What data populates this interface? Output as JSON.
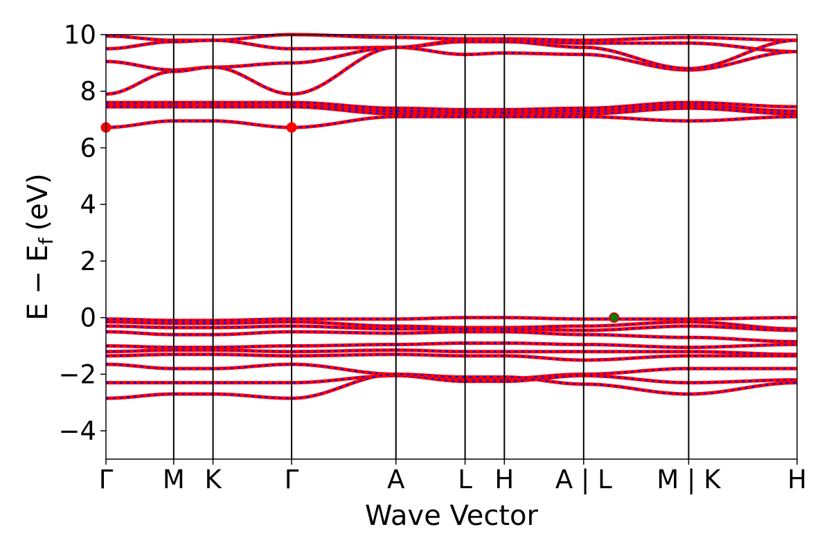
{
  "chart_data": {
    "type": "line",
    "title": "",
    "xlabel": "Wave Vector",
    "ylabel": "E − E",
    "ylabel_sub": "f",
    "ylabel_unit": "(eV)",
    "ylim": [
      -5,
      10
    ],
    "yticks": [
      -4,
      -2,
      0,
      2,
      4,
      6,
      8,
      10
    ],
    "ytick_labels": [
      "−4",
      "−2",
      "0",
      "2",
      "4",
      "6",
      "8",
      "10"
    ],
    "xlim": [
      0,
      10.2
    ],
    "kpoints": [
      {
        "label": "Γ",
        "x": 0
      },
      {
        "label": "M",
        "x": 1.0
      },
      {
        "label": "K",
        "x": 1.58
      },
      {
        "label": "Γ",
        "x": 2.74
      },
      {
        "label": "A",
        "x": 4.28
      },
      {
        "label": "L",
        "x": 5.3
      },
      {
        "label": "H",
        "x": 5.88
      },
      {
        "label": "A | L",
        "x": 7.05
      },
      {
        "label": "M | K",
        "x": 8.6
      },
      {
        "label": "H",
        "x": 10.2
      }
    ],
    "grid": false,
    "colors": {
      "spin_up": "#0000ff",
      "spin_down": "#ff0000",
      "vbm_marker": "#008000",
      "cbm_marker": "#ff0000"
    },
    "segment_bounds": [
      0,
      1.0,
      1.58,
      2.74,
      4.28,
      5.3,
      5.88,
      7.05,
      8.6,
      10.2
    ],
    "bands": [
      {
        "name": "c6",
        "e": [
          9.95,
          9.8,
          9.8,
          10.0,
          9.9,
          9.85,
          9.85,
          9.8,
          9.9,
          9.8
        ]
      },
      {
        "name": "c5",
        "e": [
          9.5,
          9.75,
          9.8,
          9.5,
          9.55,
          9.8,
          9.8,
          9.7,
          9.7,
          9.4
        ]
      },
      {
        "name": "c4",
        "e": [
          9.05,
          8.75,
          8.85,
          9.0,
          9.55,
          9.3,
          9.35,
          9.3,
          8.75,
          9.4
        ]
      },
      {
        "name": "c3",
        "e": [
          7.9,
          8.7,
          8.85,
          7.9,
          9.55,
          9.75,
          9.75,
          9.55,
          8.8,
          9.8
        ]
      },
      {
        "name": "c2a",
        "e": [
          7.6,
          7.6,
          7.6,
          7.6,
          7.4,
          7.35,
          7.35,
          7.4,
          7.6,
          7.45
        ]
      },
      {
        "name": "c2b",
        "e": [
          7.5,
          7.5,
          7.5,
          7.5,
          7.3,
          7.25,
          7.25,
          7.3,
          7.5,
          7.3
        ]
      },
      {
        "name": "c2c",
        "e": [
          7.45,
          7.45,
          7.45,
          7.45,
          7.2,
          7.15,
          7.15,
          7.2,
          7.4,
          7.2
        ]
      },
      {
        "name": "c1",
        "e": [
          6.72,
          6.95,
          6.95,
          6.72,
          7.1,
          7.1,
          7.1,
          7.1,
          6.95,
          7.1
        ]
      },
      {
        "name": "v1",
        "e": [
          -0.05,
          -0.1,
          -0.1,
          -0.05,
          -0.05,
          0.0,
          0.0,
          -0.05,
          -0.05,
          0.0
        ]
      },
      {
        "name": "v2",
        "e": [
          -0.15,
          -0.2,
          -0.2,
          -0.15,
          -0.3,
          -0.35,
          -0.35,
          -0.3,
          -0.15,
          -0.4
        ]
      },
      {
        "name": "v3",
        "e": [
          -0.3,
          -0.35,
          -0.35,
          -0.3,
          -0.4,
          -0.4,
          -0.4,
          -0.45,
          -0.3,
          -0.45
        ]
      },
      {
        "name": "v4",
        "e": [
          -0.5,
          -0.6,
          -0.6,
          -0.5,
          -0.55,
          -0.5,
          -0.5,
          -0.6,
          -0.7,
          -0.85
        ]
      },
      {
        "name": "v5",
        "e": [
          -1.0,
          -1.05,
          -1.05,
          -1.0,
          -0.95,
          -0.9,
          -0.9,
          -0.95,
          -1.05,
          -0.95
        ]
      },
      {
        "name": "v6",
        "e": [
          -1.2,
          -1.15,
          -1.15,
          -1.2,
          -1.15,
          -1.2,
          -1.2,
          -1.2,
          -1.2,
          -1.3
        ]
      },
      {
        "name": "v7",
        "e": [
          -1.35,
          -1.3,
          -1.3,
          -1.35,
          -1.3,
          -1.35,
          -1.35,
          -1.5,
          -1.35,
          -1.35
        ]
      },
      {
        "name": "v8",
        "e": [
          -1.65,
          -1.8,
          -1.8,
          -1.65,
          -2.0,
          -2.15,
          -2.15,
          -2.0,
          -1.8,
          -1.8
        ]
      },
      {
        "name": "v9",
        "e": [
          -2.3,
          -2.3,
          -2.3,
          -2.3,
          -2.05,
          -2.25,
          -2.25,
          -2.05,
          -2.3,
          -2.2
        ]
      },
      {
        "name": "v10",
        "e": [
          -2.85,
          -2.7,
          -2.7,
          -2.85,
          -2.0,
          -2.1,
          -2.1,
          -2.35,
          -2.7,
          -2.3
        ]
      }
    ],
    "markers": [
      {
        "name": "cbm",
        "x": 0,
        "y": 6.72,
        "color": "#ff0000"
      },
      {
        "name": "cbm",
        "x": 2.74,
        "y": 6.72,
        "color": "#ff0000"
      },
      {
        "name": "vbm",
        "x": 7.5,
        "y": 0.0,
        "color": "#008000"
      }
    ]
  }
}
